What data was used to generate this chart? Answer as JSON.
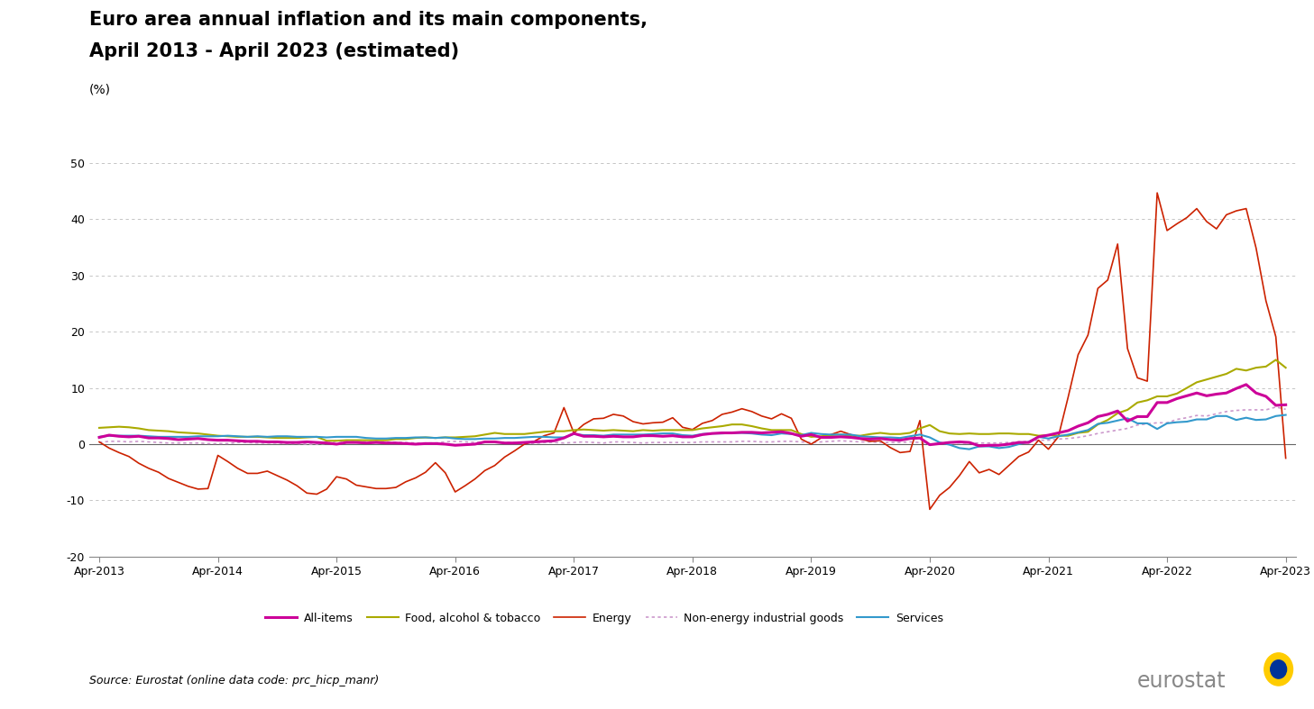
{
  "title_line1": "Euro area annual inflation and its main components,",
  "title_line2": "April 2013 - April 2023 (estimated)",
  "ylabel": "(%)",
  "ylim": [
    -20,
    50
  ],
  "yticks": [
    -20,
    -10,
    0,
    10,
    20,
    30,
    40,
    50
  ],
  "source_text": "Source: Eurostat (online data code: prc_hicp_manr)",
  "background_color": "#ffffff",
  "x_labels": [
    "Apr-2013",
    "Apr-2014",
    "Apr-2015",
    "Apr-2016",
    "Apr-2017",
    "Apr-2018",
    "Apr-2019",
    "Apr-2020",
    "Apr-2021",
    "Apr-2022",
    "Apr-2023"
  ],
  "colors": {
    "all_items": "#cc0099",
    "food": "#aaaa00",
    "energy": "#cc2200",
    "neig": "#cc99cc",
    "services": "#3399cc"
  },
  "grid_color": "#bbbbbb",
  "spine_color": "#888888",
  "all_items_monthly": [
    1.2,
    1.6,
    1.4,
    1.3,
    1.4,
    1.1,
    1.1,
    1.0,
    0.8,
    0.9,
    1.0,
    0.8,
    0.7,
    0.7,
    0.6,
    0.5,
    0.5,
    0.4,
    0.4,
    0.3,
    0.3,
    0.4,
    0.3,
    0.2,
    0.0,
    0.3,
    0.3,
    0.2,
    0.3,
    0.2,
    0.2,
    0.1,
    0.0,
    0.1,
    0.1,
    0.0,
    -0.2,
    -0.1,
    0.0,
    0.4,
    0.4,
    0.2,
    0.2,
    0.3,
    0.4,
    0.5,
    0.6,
    1.1,
    1.9,
    1.4,
    1.4,
    1.3,
    1.4,
    1.3,
    1.3,
    1.5,
    1.5,
    1.4,
    1.5,
    1.3,
    1.3,
    1.7,
    1.9,
    2.0,
    2.0,
    2.1,
    2.1,
    2.0,
    2.1,
    2.2,
    1.9,
    1.4,
    1.7,
    1.2,
    1.2,
    1.3,
    1.2,
    1.0,
    0.9,
    1.0,
    0.8,
    0.7,
    1.0,
    1.1,
    -0.1,
    0.1,
    0.3,
    0.4,
    0.3,
    -0.3,
    -0.2,
    -0.2,
    0.0,
    0.3,
    0.3,
    1.3,
    1.6,
    2.0,
    2.4,
    3.2,
    3.8,
    4.9,
    5.3,
    5.9,
    4.1,
    4.9,
    4.9,
    7.4,
    7.4,
    8.1,
    8.6,
    9.1,
    8.6,
    8.9,
    9.1,
    9.9,
    10.6,
    9.1,
    8.5,
    6.9,
    7.0
  ],
  "food_monthly": [
    2.9,
    3.0,
    3.1,
    3.0,
    2.8,
    2.5,
    2.4,
    2.3,
    2.1,
    2.0,
    1.9,
    1.7,
    1.5,
    1.4,
    1.3,
    1.3,
    1.3,
    1.2,
    1.1,
    1.1,
    1.1,
    1.2,
    1.3,
    0.6,
    0.6,
    0.7,
    0.7,
    0.7,
    0.7,
    0.7,
    0.9,
    0.9,
    1.1,
    1.2,
    1.1,
    1.2,
    1.2,
    1.3,
    1.4,
    1.7,
    2.0,
    1.8,
    1.8,
    1.8,
    2.0,
    2.2,
    2.3,
    2.3,
    2.5,
    2.6,
    2.5,
    2.4,
    2.5,
    2.4,
    2.3,
    2.5,
    2.4,
    2.5,
    2.5,
    2.5,
    2.5,
    2.8,
    3.0,
    3.2,
    3.5,
    3.5,
    3.2,
    2.8,
    2.5,
    2.5,
    2.5,
    1.8,
    1.3,
    1.4,
    1.6,
    1.7,
    1.5,
    1.5,
    1.8,
    2.0,
    1.8,
    1.8,
    2.0,
    2.8,
    3.4,
    2.3,
    1.9,
    1.8,
    1.9,
    1.8,
    1.8,
    1.9,
    1.9,
    1.8,
    1.8,
    1.5,
    1.6,
    1.5,
    1.5,
    2.0,
    2.2,
    3.5,
    4.3,
    5.5,
    6.1,
    7.4,
    7.8,
    8.5,
    8.5,
    9.0,
    10.0,
    11.0,
    11.5,
    12.0,
    12.5,
    13.4,
    13.1,
    13.6,
    13.8,
    15.0,
    13.6
  ],
  "energy_monthly": [
    0.4,
    -0.7,
    -1.5,
    -2.2,
    -3.4,
    -4.3,
    -5.0,
    -6.1,
    -6.8,
    -7.5,
    -8.0,
    -7.9,
    -2.0,
    -3.1,
    -4.3,
    -5.2,
    -5.2,
    -4.8,
    -5.6,
    -6.4,
    -7.4,
    -8.7,
    -8.9,
    -8.0,
    -5.8,
    -6.2,
    -7.3,
    -7.6,
    -7.9,
    -7.9,
    -7.7,
    -6.7,
    -6.0,
    -5.0,
    -3.3,
    -5.1,
    -8.5,
    -7.4,
    -6.2,
    -4.7,
    -3.8,
    -2.3,
    -1.2,
    0.0,
    0.5,
    1.5,
    2.0,
    6.5,
    2.0,
    3.5,
    4.5,
    4.6,
    5.3,
    5.0,
    4.0,
    3.6,
    3.8,
    3.9,
    4.7,
    3.0,
    2.6,
    3.7,
    4.2,
    5.3,
    5.7,
    6.3,
    5.8,
    5.0,
    4.5,
    5.4,
    4.6,
    0.9,
    0.0,
    1.1,
    1.7,
    2.3,
    1.7,
    0.9,
    0.5,
    0.6,
    -0.6,
    -1.5,
    -1.3,
    4.2,
    -11.6,
    -9.1,
    -7.7,
    -5.6,
    -3.1,
    -5.1,
    -4.5,
    -5.4,
    -3.8,
    -2.2,
    -1.4,
    0.7,
    -0.9,
    1.3,
    8.4,
    15.9,
    19.4,
    27.7,
    29.2,
    35.6,
    17.0,
    11.8,
    11.2,
    44.7,
    38.0,
    39.2,
    40.3,
    41.9,
    39.6,
    38.3,
    40.8,
    41.5,
    41.9,
    34.9,
    25.5,
    19.1,
    -2.5
  ],
  "neig_monthly": [
    0.3,
    0.5,
    0.5,
    0.4,
    0.5,
    0.4,
    0.3,
    0.2,
    0.2,
    0.2,
    0.2,
    0.1,
    0.1,
    0.1,
    0.3,
    0.3,
    0.2,
    0.2,
    0.2,
    0.1,
    0.1,
    0.0,
    0.0,
    0.1,
    0.6,
    0.4,
    0.4,
    0.4,
    0.4,
    0.4,
    0.3,
    0.3,
    0.2,
    0.2,
    0.2,
    0.4,
    0.5,
    0.4,
    0.3,
    0.4,
    0.4,
    0.3,
    0.3,
    0.2,
    0.1,
    0.3,
    0.3,
    0.2,
    0.3,
    0.4,
    0.3,
    0.2,
    0.4,
    0.4,
    0.3,
    0.2,
    0.3,
    0.3,
    0.3,
    0.3,
    0.3,
    0.4,
    0.4,
    0.4,
    0.4,
    0.5,
    0.5,
    0.4,
    0.4,
    0.5,
    0.5,
    0.4,
    0.3,
    0.4,
    0.5,
    0.6,
    0.5,
    0.4,
    0.4,
    0.3,
    0.3,
    0.3,
    0.4,
    0.3,
    -0.1,
    0.2,
    0.3,
    0.2,
    0.2,
    0.2,
    0.2,
    0.2,
    0.3,
    0.4,
    0.5,
    0.7,
    0.7,
    0.9,
    1.0,
    1.2,
    1.5,
    1.9,
    2.2,
    2.5,
    2.8,
    3.4,
    3.6,
    3.8,
    3.8,
    4.4,
    4.7,
    5.1,
    5.0,
    5.4,
    5.8,
    6.0,
    6.1,
    6.1,
    6.1,
    6.6,
    6.2
  ],
  "services_monthly": [
    1.3,
    1.5,
    1.5,
    1.5,
    1.5,
    1.4,
    1.3,
    1.3,
    1.3,
    1.3,
    1.4,
    1.4,
    1.4,
    1.5,
    1.4,
    1.3,
    1.4,
    1.3,
    1.4,
    1.4,
    1.3,
    1.3,
    1.3,
    1.2,
    1.3,
    1.3,
    1.3,
    1.1,
    1.0,
    1.0,
    1.1,
    1.1,
    1.2,
    1.2,
    1.1,
    1.2,
    1.0,
    0.9,
    0.9,
    1.0,
    1.0,
    1.1,
    1.1,
    1.2,
    1.3,
    1.3,
    1.2,
    1.2,
    1.8,
    1.6,
    1.6,
    1.5,
    1.7,
    1.7,
    1.7,
    1.7,
    1.8,
    1.9,
    1.9,
    1.6,
    1.5,
    1.8,
    1.9,
    1.9,
    2.0,
    2.0,
    1.9,
    1.7,
    1.6,
    1.9,
    1.8,
    1.6,
    2.0,
    1.8,
    1.7,
    1.7,
    1.7,
    1.4,
    1.3,
    1.2,
    1.2,
    1.1,
    1.4,
    1.7,
    1.2,
    0.3,
    -0.1,
    -0.7,
    -0.9,
    -0.4,
    -0.4,
    -0.7,
    -0.5,
    0.0,
    0.4,
    1.3,
    1.0,
    1.4,
    1.7,
    2.1,
    2.5,
    3.6,
    3.8,
    4.2,
    4.6,
    3.7,
    3.7,
    2.7,
    3.7,
    3.9,
    4.0,
    4.4,
    4.4,
    5.0,
    5.0,
    4.3,
    4.7,
    4.3,
    4.4,
    5.0,
    5.2
  ]
}
